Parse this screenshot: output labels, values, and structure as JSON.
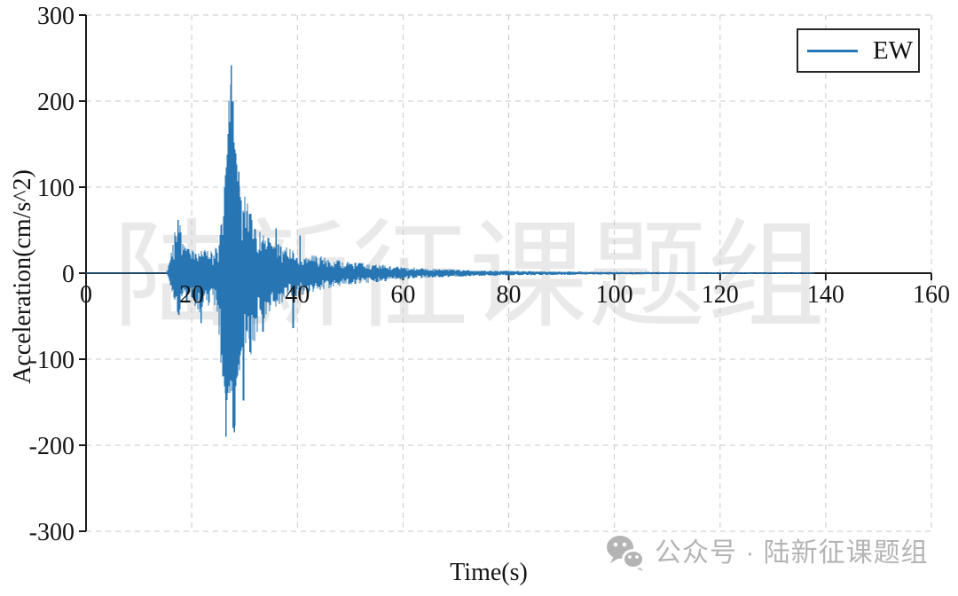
{
  "chart_data": {
    "type": "line",
    "title": "",
    "xlabel": "Time(s)",
    "ylabel": "Acceleration(cm/s^2)",
    "xlim": [
      0,
      160
    ],
    "ylim": [
      -300,
      300
    ],
    "xticks": [
      0,
      20,
      40,
      60,
      80,
      100,
      120,
      140,
      160
    ],
    "xtick_labels": [
      "0",
      "20",
      "40",
      "60",
      "80",
      "100",
      "120",
      "140",
      "160"
    ],
    "yticks": [
      300,
      200,
      100,
      0,
      -100,
      -200,
      -300
    ],
    "ytick_labels": [
      "300",
      "200",
      "100",
      "0",
      "-100",
      "-200",
      "-300"
    ],
    "grid": "dashed",
    "legend_position": "upper-right",
    "series": [
      {
        "name": "EW",
        "color": "#2776b3",
        "signal_start_s": 15.2,
        "signal_end_s": 137.8,
        "peak_acceleration_cm_s2": 242,
        "min_acceleration_cm_s2": -190,
        "peak_time_s": 27.5,
        "envelope_up": [
          [
            0,
            0.3
          ],
          [
            15.2,
            0.4
          ],
          [
            15.7,
            12
          ],
          [
            16.3,
            30
          ],
          [
            17.0,
            55
          ],
          [
            17.6,
            65
          ],
          [
            18.2,
            52
          ],
          [
            19.0,
            30
          ],
          [
            20,
            26
          ],
          [
            22,
            27
          ],
          [
            24,
            26
          ],
          [
            25.2,
            34
          ],
          [
            25.8,
            75
          ],
          [
            26.4,
            140
          ],
          [
            27.0,
            205
          ],
          [
            27.5,
            242
          ],
          [
            27.9,
            205
          ],
          [
            28.4,
            150
          ],
          [
            29.0,
            118
          ],
          [
            29.7,
            95
          ],
          [
            30.5,
            82
          ],
          [
            31.5,
            64
          ],
          [
            33,
            48
          ],
          [
            35,
            40
          ],
          [
            37,
            32
          ],
          [
            39,
            28
          ],
          [
            41,
            24
          ],
          [
            44,
            20
          ],
          [
            47,
            16
          ],
          [
            50,
            13
          ],
          [
            54,
            11
          ],
          [
            58,
            8.5
          ],
          [
            62,
            6.5
          ],
          [
            66,
            5.2
          ],
          [
            70,
            4.2
          ],
          [
            75,
            3.4
          ],
          [
            80,
            2.8
          ],
          [
            86,
            2.3
          ],
          [
            92,
            1.9
          ],
          [
            100,
            1.6
          ],
          [
            110,
            1.3
          ],
          [
            120,
            1.1
          ],
          [
            128,
            1.0
          ],
          [
            137,
            0.9
          ],
          [
            137.8,
            0.2
          ]
        ],
        "envelope_down": [
          [
            0,
            0.3
          ],
          [
            15.2,
            0.4
          ],
          [
            15.7,
            10
          ],
          [
            16.3,
            26
          ],
          [
            17.0,
            42
          ],
          [
            17.6,
            50
          ],
          [
            18.2,
            45
          ],
          [
            19.0,
            34
          ],
          [
            20,
            30
          ],
          [
            21.5,
            52
          ],
          [
            22.5,
            44
          ],
          [
            24,
            30
          ],
          [
            25.0,
            58
          ],
          [
            25.7,
            120
          ],
          [
            26.2,
            165
          ],
          [
            26.6,
            190
          ],
          [
            27.1,
            160
          ],
          [
            27.6,
            150
          ],
          [
            28.1,
            185
          ],
          [
            28.7,
            140
          ],
          [
            29.4,
            112
          ],
          [
            30.2,
            90
          ],
          [
            31.2,
            95
          ],
          [
            32.2,
            72
          ],
          [
            33.2,
            56
          ],
          [
            35,
            44
          ],
          [
            37,
            35
          ],
          [
            39,
            29
          ],
          [
            41,
            25
          ],
          [
            44,
            20
          ],
          [
            47,
            16
          ],
          [
            50,
            13
          ],
          [
            54,
            11
          ],
          [
            58,
            8.5
          ],
          [
            62,
            6.5
          ],
          [
            66,
            5.2
          ],
          [
            70,
            4.2
          ],
          [
            75,
            3.4
          ],
          [
            80,
            2.8
          ],
          [
            86,
            2.3
          ],
          [
            92,
            1.9
          ],
          [
            100,
            1.6
          ],
          [
            110,
            1.3
          ],
          [
            120,
            1.1
          ],
          [
            128,
            1.0
          ],
          [
            137,
            0.9
          ],
          [
            137.8,
            0.2
          ]
        ],
        "spikes": [
          [
            17.4,
            62
          ],
          [
            21.8,
            -58
          ],
          [
            25.9,
            -120
          ],
          [
            26.5,
            -190
          ],
          [
            26.9,
            162
          ],
          [
            27.5,
            242
          ],
          [
            27.8,
            -180
          ],
          [
            28.1,
            -185
          ],
          [
            28.9,
            118
          ],
          [
            29.8,
            -148
          ],
          [
            31.0,
            -92
          ],
          [
            33.5,
            -68
          ],
          [
            36,
            52
          ],
          [
            39.2,
            -64
          ],
          [
            40.5,
            44
          ]
        ],
        "noise_seed": 1337
      }
    ]
  },
  "style": {
    "accent": "#2776b3",
    "grid_color": "#c8c8c8",
    "axis_color": "#1a1a1a",
    "tick_label_color": "#141414",
    "watermark_color": "rgba(0,0,0,0.085)",
    "badge_color": "#b4b4b4",
    "background": "#ffffff"
  },
  "watermarks": {
    "center_text": "陆新征课题组",
    "badge_text": "公众号 · 陆新征课题组"
  }
}
